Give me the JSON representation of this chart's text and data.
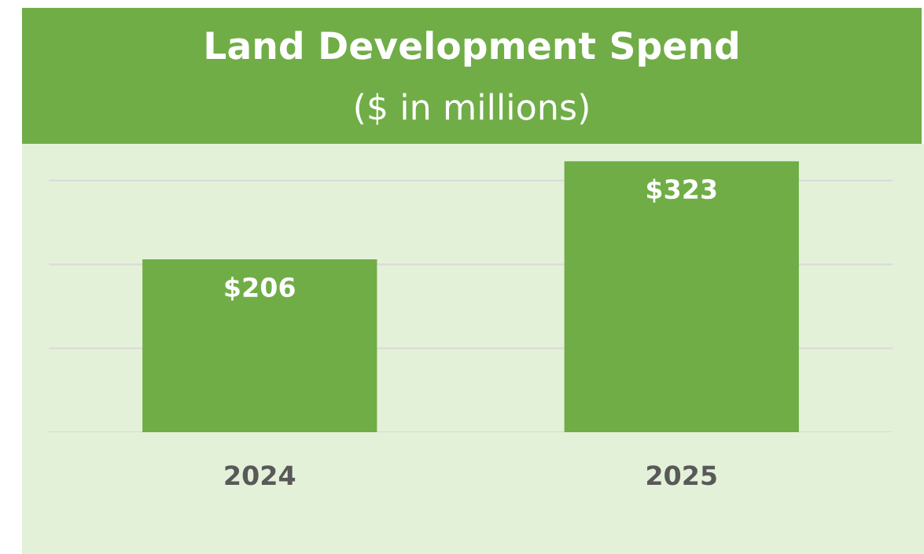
{
  "chart_data": {
    "type": "bar",
    "title": "Land Development Spend",
    "subtitle": "($ in millions)",
    "categories": [
      "2024",
      "2025"
    ],
    "series": [
      {
        "color": "#70ad47",
        "values": [
          206,
          323
        ],
        "value_labels": [
          "$206",
          "$323"
        ]
      }
    ],
    "yticks": [
      {
        "value": 0,
        "label": null
      },
      {
        "value": 100,
        "label": null
      },
      {
        "value": 200,
        "label": null
      },
      {
        "value": 300,
        "label": null
      }
    ],
    "grid": "y",
    "tick_labels": "x",
    "legend": false
  }
}
